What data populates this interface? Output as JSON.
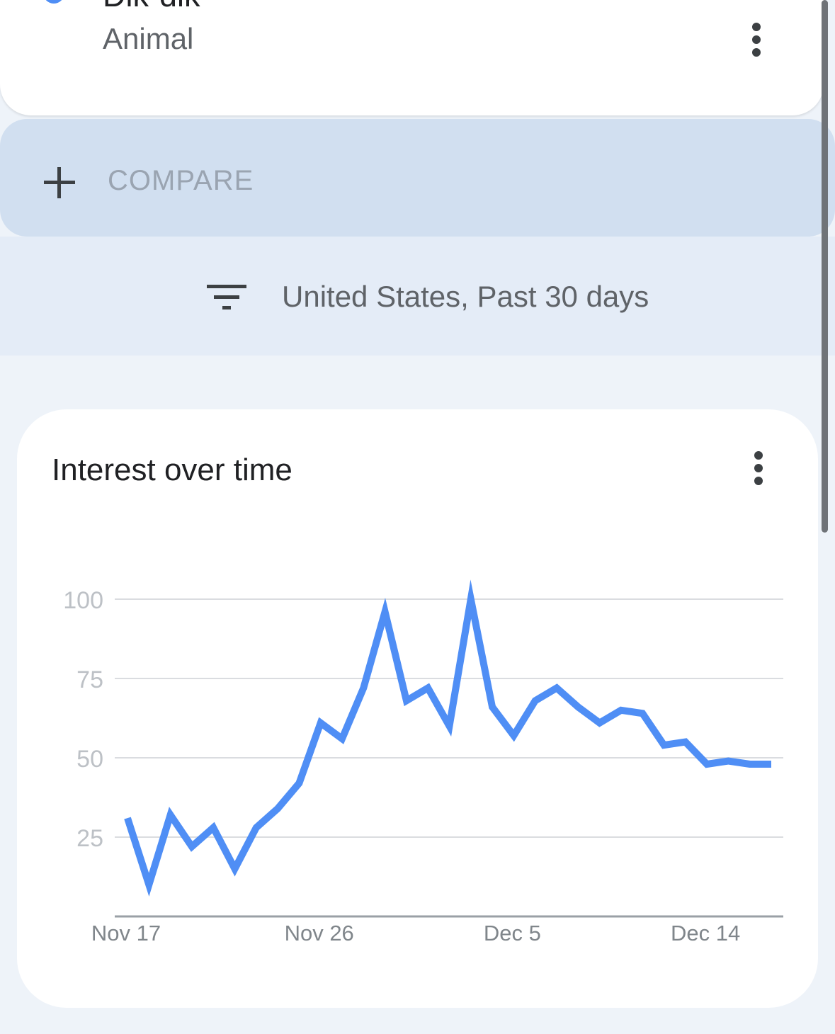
{
  "term": {
    "name": "Dik-dik",
    "type": "Animal",
    "color": "#4f8ef5",
    "menu_icon": "more-vert-icon"
  },
  "compare": {
    "label": "COMPARE",
    "icon": "plus-icon"
  },
  "filter": {
    "label": "United States, Past 30 days",
    "icon": "filter-icon"
  },
  "chart_card": {
    "title": "Interest over time",
    "menu_icon": "more-vert-icon"
  },
  "chart_data": {
    "type": "line",
    "title": "Interest over time",
    "x_tick_labels": [
      "Nov 17",
      "Nov 26",
      "Dec 5",
      "Dec 14"
    ],
    "x_tick_index": [
      0,
      9,
      18,
      27
    ],
    "y_ticks": [
      25,
      50,
      75,
      100
    ],
    "ylim": [
      0,
      100
    ],
    "grid": true,
    "line_color": "#4f8ef5",
    "series": [
      {
        "x": [
          "Nov 17",
          "Nov 18",
          "Nov 19",
          "Nov 20",
          "Nov 21",
          "Nov 22",
          "Nov 23",
          "Nov 24",
          "Nov 25",
          "Nov 26",
          "Nov 27",
          "Nov 28",
          "Nov 29",
          "Nov 30",
          "Dec 1",
          "Dec 2",
          "Dec 3",
          "Dec 4",
          "Dec 5",
          "Dec 6",
          "Dec 7",
          "Dec 8",
          "Dec 9",
          "Dec 10",
          "Dec 11",
          "Dec 12",
          "Dec 13",
          "Dec 14",
          "Dec 15",
          "Dec 16",
          "Dec 17"
        ],
        "values": [
          31,
          10,
          32,
          22,
          28,
          15,
          28,
          34,
          42,
          61,
          56,
          72,
          96,
          68,
          72,
          60,
          100,
          66,
          57,
          68,
          72,
          66,
          61,
          65,
          64,
          54,
          55,
          48,
          49,
          48,
          48
        ]
      }
    ]
  }
}
